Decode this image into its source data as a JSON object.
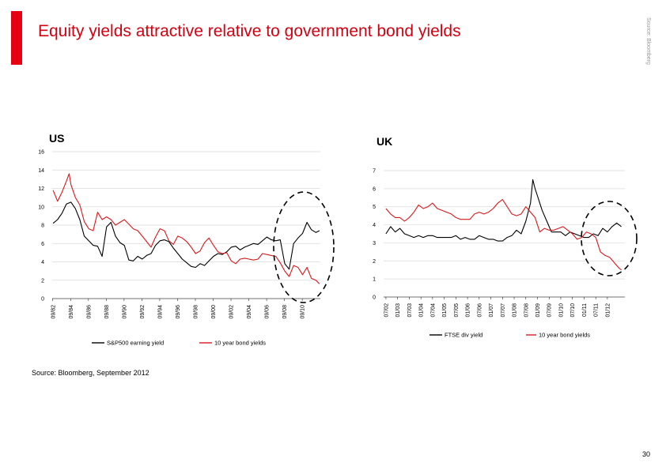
{
  "title": "Equity yields attractive relative to government bond yields",
  "side_note": "Source: Bloomberg",
  "source": "Source: Bloomberg, September 2012",
  "page_number": "30",
  "colors": {
    "accent": "#e60012",
    "title": "#d40011",
    "series_black": "#000000",
    "series_red": "#d7191c"
  },
  "chart_data": [
    {
      "type": "line",
      "panel_label": "US",
      "ylim": [
        0,
        16
      ],
      "yticks": [
        "0",
        "2",
        "4",
        "6",
        "8",
        "10",
        "12",
        "14",
        "16"
      ],
      "xlim": [
        1982.6,
        2012.7
      ],
      "xtick_labels": [
        "09/82",
        "09/84",
        "09/86",
        "09/88",
        "09/90",
        "09/92",
        "09/94",
        "09/96",
        "09/98",
        "09/00",
        "09/02",
        "09/04",
        "09/06",
        "09/08",
        "09/10"
      ],
      "xtick_years": [
        1982.67,
        1984.67,
        1986.67,
        1988.67,
        1990.67,
        1992.67,
        1994.67,
        1996.67,
        1998.67,
        2000.67,
        2002.67,
        2004.67,
        2006.67,
        2008.67,
        2010.67
      ],
      "grid": "horizontal",
      "legend_position": "bottom",
      "series": [
        {
          "name": "S&P500 earning yield",
          "color": "#000000",
          "x": [
            1982.7,
            1983.2,
            1983.7,
            1984.2,
            1984.7,
            1985.2,
            1985.7,
            1986.2,
            1986.7,
            1987.2,
            1987.7,
            1988.2,
            1988.7,
            1989.2,
            1989.7,
            1990.2,
            1990.7,
            1991.2,
            1991.7,
            1992.2,
            1992.7,
            1993.2,
            1993.7,
            1994.2,
            1994.7,
            1995.2,
            1995.7,
            1996.2,
            1996.7,
            1997.2,
            1997.7,
            1998.2,
            1998.7,
            1999.2,
            1999.7,
            2000.2,
            2000.7,
            2001.2,
            2001.7,
            2002.2,
            2002.7,
            2003.2,
            2003.7,
            2004.2,
            2004.7,
            2005.2,
            2005.7,
            2006.2,
            2006.7,
            2007.2,
            2007.7,
            2008.2,
            2008.7,
            2009.2,
            2009.7,
            2010.2,
            2010.7,
            2011.2,
            2011.7,
            2012.2,
            2012.6
          ],
          "y": [
            8.2,
            8.6,
            9.3,
            10.3,
            10.5,
            9.8,
            8.6,
            6.8,
            6.3,
            5.8,
            5.7,
            4.6,
            7.8,
            8.3,
            6.8,
            6.1,
            5.8,
            4.2,
            4.1,
            4.6,
            4.3,
            4.7,
            4.9,
            5.8,
            6.3,
            6.4,
            6.2,
            5.5,
            4.9,
            4.3,
            3.9,
            3.5,
            3.4,
            3.8,
            3.6,
            4.1,
            4.6,
            4.9,
            4.8,
            5.1,
            5.6,
            5.7,
            5.3,
            5.6,
            5.8,
            6.0,
            5.9,
            6.3,
            6.7,
            6.4,
            6.3,
            6.4,
            3.8,
            3.2,
            6.0,
            6.6,
            7.1,
            8.3,
            7.5,
            7.2,
            7.4
          ]
        },
        {
          "name": "10 year bond yields",
          "color": "#d7191c",
          "x": [
            1982.7,
            1983.2,
            1983.7,
            1984.2,
            1984.5,
            1984.7,
            1985.2,
            1985.7,
            1986.2,
            1986.7,
            1987.2,
            1987.7,
            1988.2,
            1988.7,
            1989.2,
            1989.7,
            1990.2,
            1990.7,
            1991.2,
            1991.7,
            1992.2,
            1992.7,
            1993.2,
            1993.7,
            1994.2,
            1994.7,
            1995.2,
            1995.7,
            1996.2,
            1996.7,
            1997.2,
            1997.7,
            1998.2,
            1998.7,
            1999.2,
            1999.7,
            2000.2,
            2000.7,
            2001.2,
            2001.7,
            2002.2,
            2002.7,
            2003.2,
            2003.7,
            2004.2,
            2004.7,
            2005.2,
            2005.7,
            2006.2,
            2006.7,
            2007.2,
            2007.7,
            2008.2,
            2008.7,
            2009.2,
            2009.7,
            2010.2,
            2010.7,
            2011.2,
            2011.7,
            2012.2,
            2012.6
          ],
          "y": [
            11.8,
            10.6,
            11.6,
            12.8,
            13.6,
            12.4,
            11.0,
            10.2,
            8.4,
            7.6,
            7.4,
            9.4,
            8.6,
            8.9,
            8.6,
            8.0,
            8.3,
            8.6,
            8.1,
            7.6,
            7.4,
            6.8,
            6.2,
            5.6,
            6.7,
            7.6,
            7.4,
            6.3,
            5.9,
            6.8,
            6.6,
            6.2,
            5.6,
            4.9,
            5.2,
            6.1,
            6.6,
            5.8,
            5.1,
            4.9,
            5.0,
            4.1,
            3.8,
            4.3,
            4.4,
            4.3,
            4.2,
            4.3,
            4.9,
            4.8,
            4.7,
            4.6,
            3.9,
            3.0,
            2.4,
            3.6,
            3.4,
            2.6,
            3.4,
            2.2,
            2.0,
            1.6
          ]
        }
      ]
    },
    {
      "type": "line",
      "panel_label": "UK",
      "ylim": [
        0,
        7
      ],
      "yticks": [
        "0",
        "1",
        "2",
        "3",
        "4",
        "5",
        "6",
        "7"
      ],
      "xlim": [
        2002.4,
        2012.75
      ],
      "xtick_labels": [
        "07/02",
        "01/03",
        "07/03",
        "01/04",
        "07/04",
        "01/05",
        "07/05",
        "01/06",
        "07/06",
        "01/07",
        "07/07",
        "01/08",
        "07/08",
        "01/09",
        "07/09",
        "01/10",
        "07/10",
        "01/11",
        "07/11",
        "01/12"
      ],
      "xtick_years": [
        2002.5,
        2003.0,
        2003.5,
        2004.0,
        2004.5,
        2005.0,
        2005.5,
        2006.0,
        2006.5,
        2007.0,
        2007.5,
        2008.0,
        2008.5,
        2009.0,
        2009.5,
        2010.0,
        2010.5,
        2011.0,
        2011.5,
        2012.0
      ],
      "grid": "horizontal",
      "legend_position": "bottom",
      "series": [
        {
          "name": "FTSE div yield",
          "color": "#000000",
          "x": [
            2002.5,
            2002.7,
            2002.9,
            2003.1,
            2003.3,
            2003.5,
            2003.7,
            2003.9,
            2004.1,
            2004.3,
            2004.5,
            2004.7,
            2004.9,
            2005.1,
            2005.3,
            2005.5,
            2005.7,
            2005.9,
            2006.1,
            2006.3,
            2006.5,
            2006.7,
            2006.9,
            2007.1,
            2007.3,
            2007.5,
            2007.7,
            2007.9,
            2008.1,
            2008.3,
            2008.5,
            2008.7,
            2008.8,
            2008.9,
            2009.0,
            2009.1,
            2009.2,
            2009.4,
            2009.6,
            2009.8,
            2010.0,
            2010.2,
            2010.4,
            2010.6,
            2010.8,
            2011.0,
            2011.2,
            2011.4,
            2011.6,
            2011.8,
            2012.0,
            2012.2,
            2012.4,
            2012.6
          ],
          "y": [
            3.5,
            3.9,
            3.6,
            3.8,
            3.5,
            3.4,
            3.3,
            3.4,
            3.3,
            3.4,
            3.4,
            3.3,
            3.3,
            3.3,
            3.3,
            3.4,
            3.2,
            3.3,
            3.2,
            3.2,
            3.4,
            3.3,
            3.2,
            3.2,
            3.1,
            3.1,
            3.3,
            3.4,
            3.7,
            3.5,
            4.2,
            5.2,
            6.5,
            6.0,
            5.6,
            5.2,
            4.8,
            4.2,
            3.6,
            3.6,
            3.6,
            3.4,
            3.6,
            3.5,
            3.4,
            3.3,
            3.3,
            3.5,
            3.4,
            3.8,
            3.6,
            3.9,
            4.1,
            3.9
          ]
        },
        {
          "name": "10 year bond yields",
          "color": "#d7191c",
          "x": [
            2002.5,
            2002.7,
            2002.9,
            2003.1,
            2003.3,
            2003.5,
            2003.7,
            2003.9,
            2004.1,
            2004.3,
            2004.5,
            2004.7,
            2004.9,
            2005.1,
            2005.3,
            2005.5,
            2005.7,
            2005.9,
            2006.1,
            2006.3,
            2006.5,
            2006.7,
            2006.9,
            2007.1,
            2007.3,
            2007.5,
            2007.7,
            2007.9,
            2008.1,
            2008.3,
            2008.5,
            2008.7,
            2008.9,
            2009.1,
            2009.3,
            2009.5,
            2009.7,
            2009.9,
            2010.1,
            2010.3,
            2010.5,
            2010.7,
            2010.9,
            2011.1,
            2011.3,
            2011.5,
            2011.7,
            2011.9,
            2012.1,
            2012.3,
            2012.5,
            2012.6
          ],
          "y": [
            4.9,
            4.6,
            4.4,
            4.4,
            4.2,
            4.4,
            4.7,
            5.1,
            4.9,
            5.0,
            5.2,
            4.9,
            4.8,
            4.7,
            4.6,
            4.4,
            4.3,
            4.3,
            4.3,
            4.6,
            4.7,
            4.6,
            4.7,
            4.9,
            5.2,
            5.4,
            5.0,
            4.6,
            4.5,
            4.6,
            5.0,
            4.7,
            4.4,
            3.6,
            3.8,
            3.7,
            3.7,
            3.8,
            3.9,
            3.7,
            3.5,
            3.2,
            3.3,
            3.6,
            3.5,
            3.3,
            2.5,
            2.3,
            2.2,
            1.9,
            1.6,
            1.5
          ]
        }
      ]
    }
  ]
}
